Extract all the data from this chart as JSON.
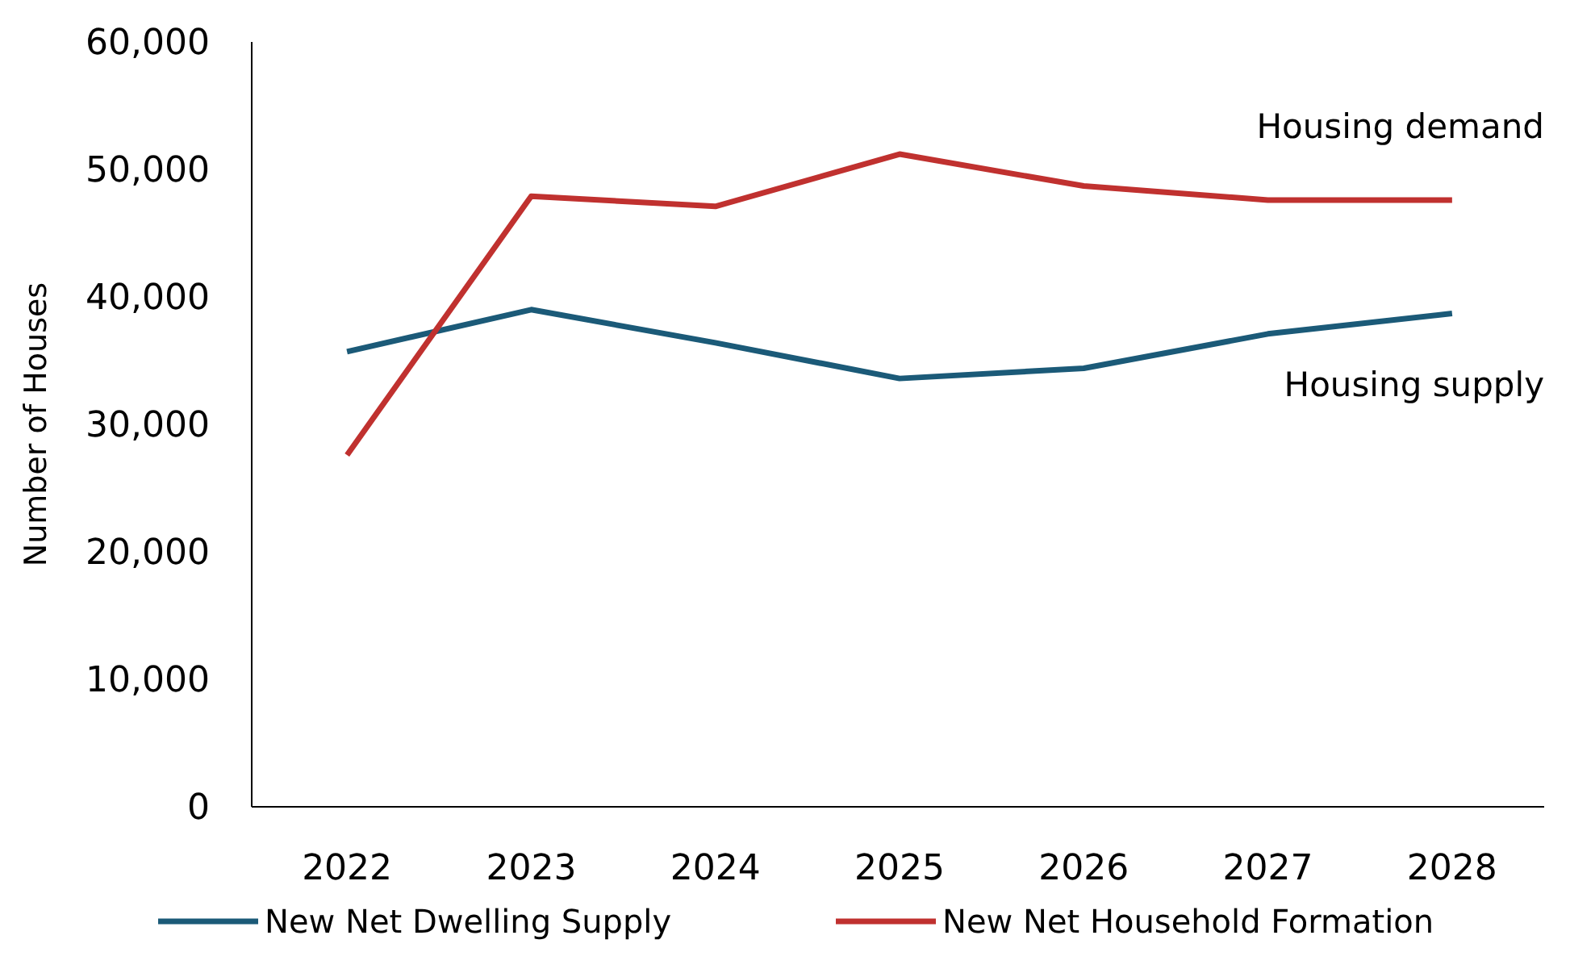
{
  "chart_data": {
    "type": "line",
    "ylabel": "Number of Houses",
    "categories": [
      "2022",
      "2023",
      "2024",
      "2025",
      "2026",
      "2027",
      "2028"
    ],
    "series": [
      {
        "name": "New Net Dwelling Supply",
        "color": "#1b5a78",
        "values": [
          35700,
          39000,
          36400,
          33600,
          34400,
          37100,
          38700
        ]
      },
      {
        "name": "New Net Household Formation",
        "color": "#c0312f",
        "values": [
          27600,
          47900,
          47100,
          51200,
          48700,
          47600,
          47600
        ]
      }
    ],
    "ylim": [
      0,
      60000
    ],
    "yticks": [
      {
        "value": 0,
        "label": "0"
      },
      {
        "value": 10000,
        "label": "10,000"
      },
      {
        "value": 20000,
        "label": "20,000"
      },
      {
        "value": 30000,
        "label": "30,000"
      },
      {
        "value": 40000,
        "label": "40,000"
      },
      {
        "value": 50000,
        "label": "50,000"
      },
      {
        "value": 60000,
        "label": "60,000"
      }
    ],
    "annotations": [
      "Housing demand",
      "Housing supply"
    ],
    "grid": false,
    "legend": "bottom",
    "marker": "none",
    "line_style": "solid"
  }
}
